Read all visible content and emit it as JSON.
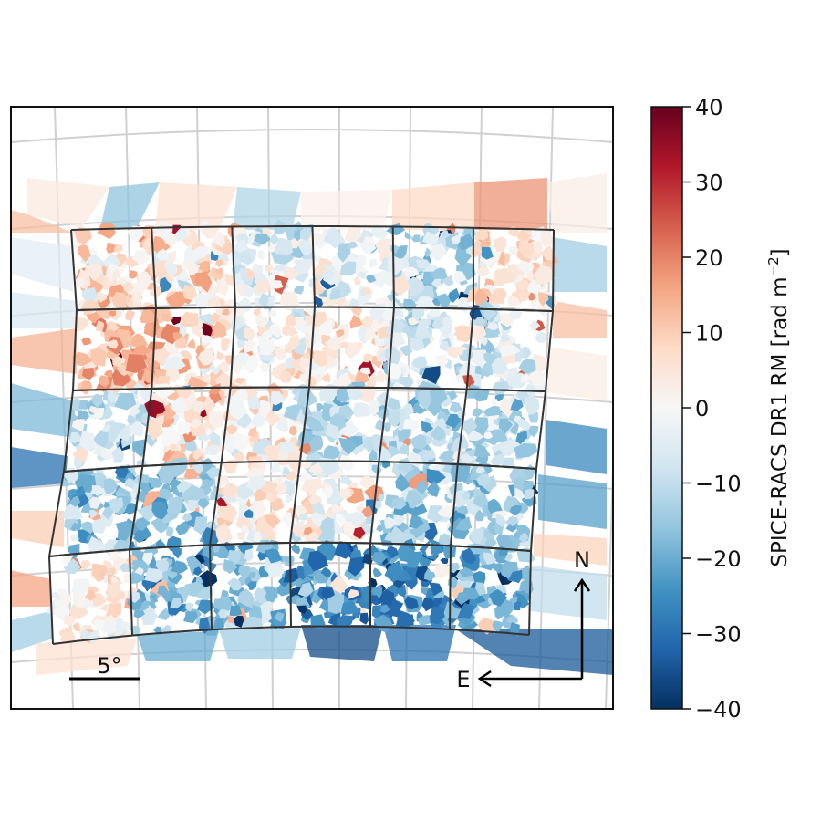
{
  "chart_data": {
    "type": "heatmap",
    "title": "",
    "colorbar": {
      "label": "SPICE-RACS DR1 RM [rad m",
      "label_exponent": "−2",
      "label_close": "]",
      "range": [
        -40,
        40
      ],
      "ticks": [
        40,
        30,
        20,
        10,
        0,
        -10,
        -20,
        -30,
        -40
      ],
      "tick_labels": [
        "40",
        "30",
        "20",
        "10",
        "0",
        "−10",
        "−20",
        "−30",
        "−40"
      ],
      "colormap": "RdBu_r"
    },
    "tile_grid": {
      "rows": 5,
      "columns": [
        6,
        6,
        6,
        6,
        6
      ],
      "row_mean_rm": [
        [
          7,
          4,
          -6,
          -3,
          -10,
          6
        ],
        [
          12,
          9,
          3,
          4,
          -6,
          -5
        ],
        [
          -7,
          5,
          4,
          -11,
          -12,
          -9
        ],
        [
          -15,
          -16,
          3,
          1,
          -13,
          -12
        ],
        [
          3,
          -18,
          -16,
          -25,
          -28,
          -20
        ]
      ]
    },
    "annotations": {
      "scale_bar_label": "5°",
      "north_label": "N",
      "east_label": "E"
    }
  }
}
